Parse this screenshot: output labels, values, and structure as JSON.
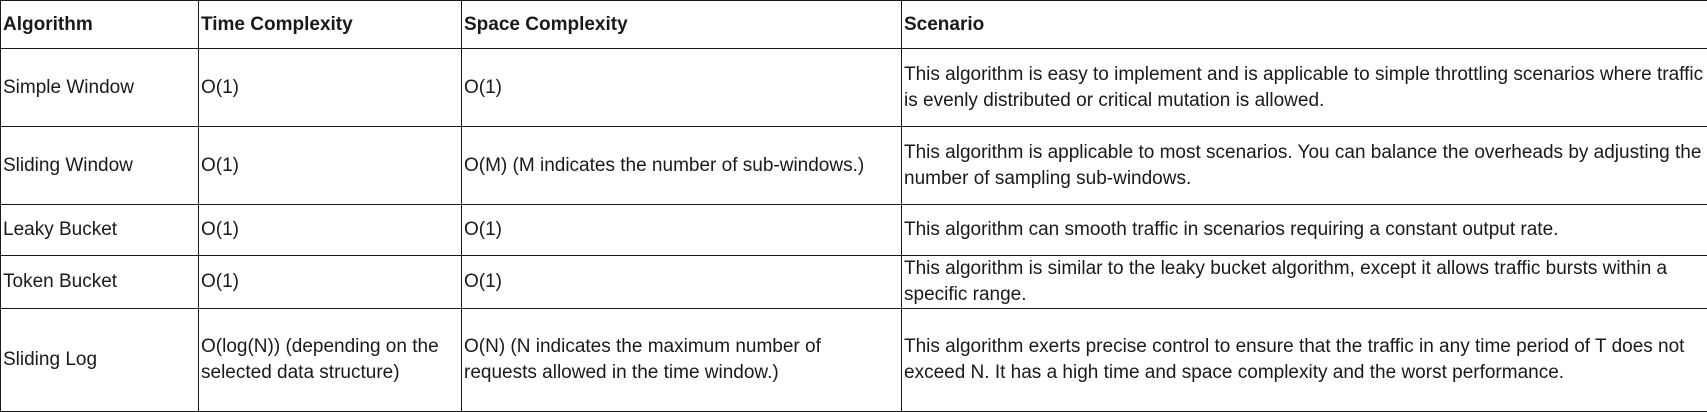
{
  "table": {
    "headers": {
      "algorithm": "Algorithm",
      "time": "Time Complexity",
      "space": "Space Complexity",
      "scenario": "Scenario"
    },
    "rows": [
      {
        "algorithm": "Simple Window",
        "time": "O(1)",
        "space": "O(1)",
        "scenario": "This algorithm is easy to implement and is applicable to simple throttling scenarios where traffic is evenly distributed or critical mutation is allowed."
      },
      {
        "algorithm": "Sliding Window",
        "time": "O(1)",
        "space": "O(M) (M indicates the number of sub-windows.)",
        "scenario": "This algorithm is applicable to most scenarios. You can balance the overheads by adjusting the number of sampling sub-windows."
      },
      {
        "algorithm": "Leaky Bucket",
        "time": "O(1)",
        "space": "O(1)",
        "scenario": "This algorithm can smooth traffic in scenarios requiring a constant output rate."
      },
      {
        "algorithm": "Token Bucket",
        "time": "O(1)",
        "space": "O(1)",
        "scenario": "This algorithm is similar to the leaky bucket algorithm, except it allows traffic bursts within a specific range."
      },
      {
        "algorithm": "Sliding Log",
        "time": "O(log(N)) (depending on the selected data structure)",
        "space": "O(N) (N indicates the maximum number of requests allowed in the time window.)",
        "scenario": "This algorithm exerts precise control to ensure that the traffic in any time period of T does not exceed N. It has a high time and space complexity and the worst performance."
      }
    ]
  }
}
